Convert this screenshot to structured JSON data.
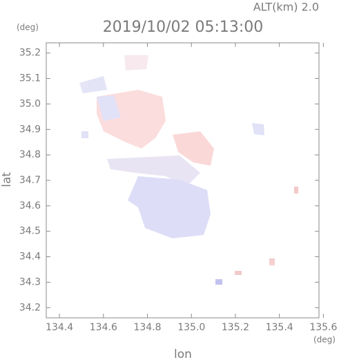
{
  "chart_data": {
    "type": "map",
    "title": "2019/10/02 05:13:00",
    "subtitle": "ALT(km) 2.0",
    "xlabel": "lon",
    "ylabel": "lat",
    "xunit": "(deg)",
    "yunit": "(deg)",
    "xlim": [
      134.34,
      135.58
    ],
    "ylim": [
      34.16,
      35.24
    ],
    "xticks": [
      134.4,
      134.6,
      134.8,
      {
        "value": 135,
        "label": "135.0"
      },
      135.2,
      135.4,
      135.6
    ],
    "yticks": [
      34.2,
      34.3,
      34.4,
      34.5,
      34.6,
      34.7,
      34.8,
      34.9,
      {
        "value": 35,
        "label": "35.0"
      },
      35.1,
      35.2
    ],
    "grid": false
  }
}
